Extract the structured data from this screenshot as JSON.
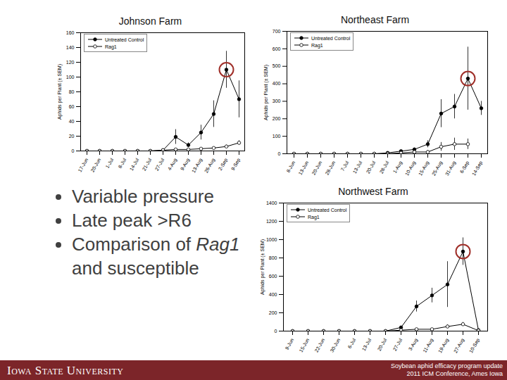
{
  "chart_data": [
    {
      "type": "line",
      "title": "Johnson Farm",
      "ylabel": "Aphids per Plant (± SEM)",
      "categories": [
        "17-Jun",
        "20-Jun",
        "1-Jul",
        "8-Jul",
        "14-Jul",
        "21-Jul",
        "27-Jul",
        "4-Aug",
        "9-Aug",
        "13-Aug",
        "26-Aug",
        "2-Sep",
        "9-Sep"
      ],
      "ylim": [
        0,
        160
      ],
      "yticks": [
        0,
        20,
        40,
        60,
        80,
        100,
        120,
        140,
        160
      ],
      "legend": "upper left",
      "series": [
        {
          "name": "Untreated Control",
          "color": "#000000",
          "marker": "filled_circle",
          "values": [
            0,
            0,
            0,
            0,
            0,
            0,
            1,
            19,
            8,
            25,
            50,
            110,
            70
          ],
          "sem": [
            null,
            null,
            null,
            null,
            null,
            null,
            null,
            10,
            3,
            10,
            18,
            25,
            25
          ]
        },
        {
          "name": "Rag1",
          "color": "#000000",
          "marker": "open_circle",
          "values": [
            0,
            0,
            0,
            0,
            0,
            0,
            1,
            2,
            2,
            3,
            4,
            6,
            11
          ],
          "sem": [
            null,
            null,
            null,
            null,
            null,
            null,
            null,
            null,
            null,
            null,
            1,
            2,
            3
          ]
        }
      ]
    },
    {
      "type": "line",
      "title": "Northeast Farm",
      "ylabel": "Aphids per Plant (± SEM)",
      "categories": [
        "8-Jun",
        "13-Jun",
        "20-Jun",
        "28-Jun",
        "7-Jul",
        "13-Jul",
        "20-Jul",
        "28-Jul",
        "1-Aug",
        "10-Aug",
        "15-Aug",
        "25-Aug",
        "31-Aug",
        "6-Sep",
        "14-Sep"
      ],
      "ylim": [
        0,
        700
      ],
      "yticks": [
        0,
        100,
        200,
        300,
        400,
        500,
        600,
        700
      ],
      "legend": "upper left",
      "series": [
        {
          "name": "Untreated Control",
          "color": "#000000",
          "marker": "filled_circle",
          "values": [
            0,
            0,
            0,
            0,
            0,
            0,
            0,
            5,
            15,
            25,
            55,
            230,
            270,
            430,
            260
          ],
          "sem": [
            null,
            null,
            null,
            null,
            null,
            null,
            null,
            null,
            null,
            8,
            20,
            80,
            70,
            180,
            40
          ]
        },
        {
          "name": "Rag1",
          "color": "#000000",
          "marker": "open_circle",
          "values": [
            0,
            0,
            0,
            0,
            0,
            0,
            0,
            0,
            5,
            10,
            10,
            40,
            55,
            55,
            null
          ],
          "sem": [
            null,
            null,
            null,
            null,
            null,
            null,
            null,
            null,
            null,
            5,
            10,
            25,
            35,
            30,
            null
          ]
        }
      ]
    },
    {
      "type": "line",
      "title": "Northwest Farm",
      "ylabel": "Aphids per Plant (± SEM)",
      "categories": [
        "9-Jun",
        "15-Jun",
        "22-Jun",
        "30-Jun",
        "6-Jul",
        "13-Jul",
        "20-Jul",
        "27-Jul",
        "3-Aug",
        "11-Aug",
        "19-Aug",
        "27-Aug",
        "10-Sep"
      ],
      "ylim": [
        0,
        1400
      ],
      "yticks": [
        0,
        200,
        400,
        600,
        800,
        1000,
        1200,
        1400
      ],
      "legend": "upper left",
      "series": [
        {
          "name": "Untreated Control",
          "color": "#000000",
          "marker": "filled_circle",
          "values": [
            0,
            0,
            0,
            0,
            0,
            0,
            0,
            40,
            270,
            390,
            510,
            870,
            10
          ],
          "sem": [
            null,
            null,
            null,
            null,
            null,
            null,
            null,
            15,
            60,
            80,
            250,
            150,
            null
          ]
        },
        {
          "name": "Rag1",
          "color": "#000000",
          "marker": "open_circle",
          "values": [
            0,
            0,
            0,
            0,
            0,
            0,
            0,
            10,
            20,
            20,
            50,
            75,
            5
          ],
          "sem": [
            null,
            null,
            null,
            null,
            null,
            null,
            null,
            null,
            null,
            null,
            20,
            20,
            null
          ]
        }
      ]
    }
  ],
  "slide": {
    "bullets": [
      [
        {
          "text": "Variable pressure"
        }
      ],
      [
        {
          "text": "Late peak >R6"
        }
      ],
      [
        {
          "text": "Comparison of "
        },
        {
          "text": "Rag1",
          "italic": true
        },
        {
          "text": " and susceptible"
        }
      ]
    ],
    "footer": {
      "left": "Iowa State University",
      "right": [
        "Soybean aphid efficacy program update",
        "2011 ICM Conference, Ames Iowa"
      ]
    }
  }
}
